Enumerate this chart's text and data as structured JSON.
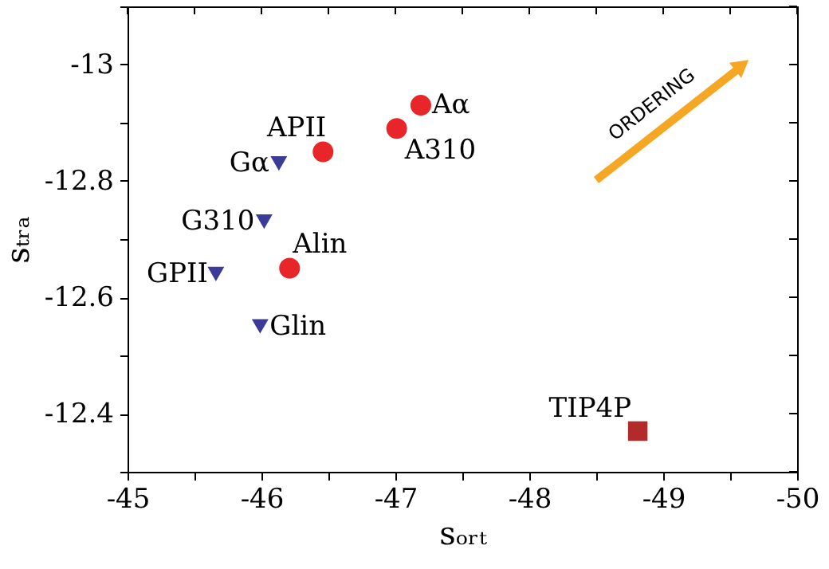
{
  "chart_data": {
    "type": "scatter",
    "xlabel": "sₒᵣₜ",
    "ylabel": "sₜᵣₐ",
    "xlim": [
      -45,
      -50
    ],
    "ylim": [
      -12.3,
      -13.1
    ],
    "xticks": [
      -45,
      {
        "value": -45.5,
        "label": null
      },
      -46,
      {
        "value": -46.5,
        "label": null
      },
      -47,
      {
        "value": -47.5,
        "label": null
      },
      -48,
      {
        "value": -48.5,
        "label": null
      },
      -49,
      {
        "value": -49.5,
        "label": null
      },
      -50
    ],
    "yticks": [
      {
        "value": -13.1,
        "label": null
      },
      -13,
      {
        "value": -12.9,
        "label": null
      },
      -12.8,
      {
        "value": -12.7,
        "label": null
      },
      -12.6,
      {
        "value": -12.5,
        "label": null
      },
      -12.4,
      {
        "value": -12.3,
        "label": null
      }
    ],
    "grid": false,
    "series": [
      {
        "color": "#e8262a",
        "marker": "circle",
        "x": [
          -47.19,
          -47.01,
          -46.46,
          -46.21
        ],
        "values": [
          -12.93,
          -12.89,
          -12.85,
          -12.65
        ]
      },
      {
        "color": "#3b3b9a",
        "marker": "triangle",
        "x": [
          -46.13,
          -46.02,
          -45.66,
          -45.99
        ],
        "values": [
          -12.83,
          -12.73,
          -12.64,
          -12.55
        ]
      },
      {
        "color": "#b22a2a",
        "marker": "square",
        "x": [
          -48.81
        ],
        "values": [
          -12.37
        ]
      }
    ],
    "annotations": [
      {
        "text": "Aα",
        "x": -47.19,
        "y": -12.93
      },
      {
        "text": "A310",
        "x": -47.01,
        "y": -12.89
      },
      {
        "text": "APII",
        "x": -46.46,
        "y": -12.85
      },
      {
        "text": "Alin",
        "x": -46.21,
        "y": -12.65
      },
      {
        "text": "Gα",
        "x": -46.13,
        "y": -12.83
      },
      {
        "text": "G310",
        "x": -46.02,
        "y": -12.73
      },
      {
        "text": "GPII",
        "x": -45.66,
        "y": -12.64
      },
      {
        "text": "Glin",
        "x": -45.99,
        "y": -12.55
      },
      {
        "text": "TIP4P",
        "x": -48.81,
        "y": -12.37
      },
      "ORDERING"
    ]
  }
}
